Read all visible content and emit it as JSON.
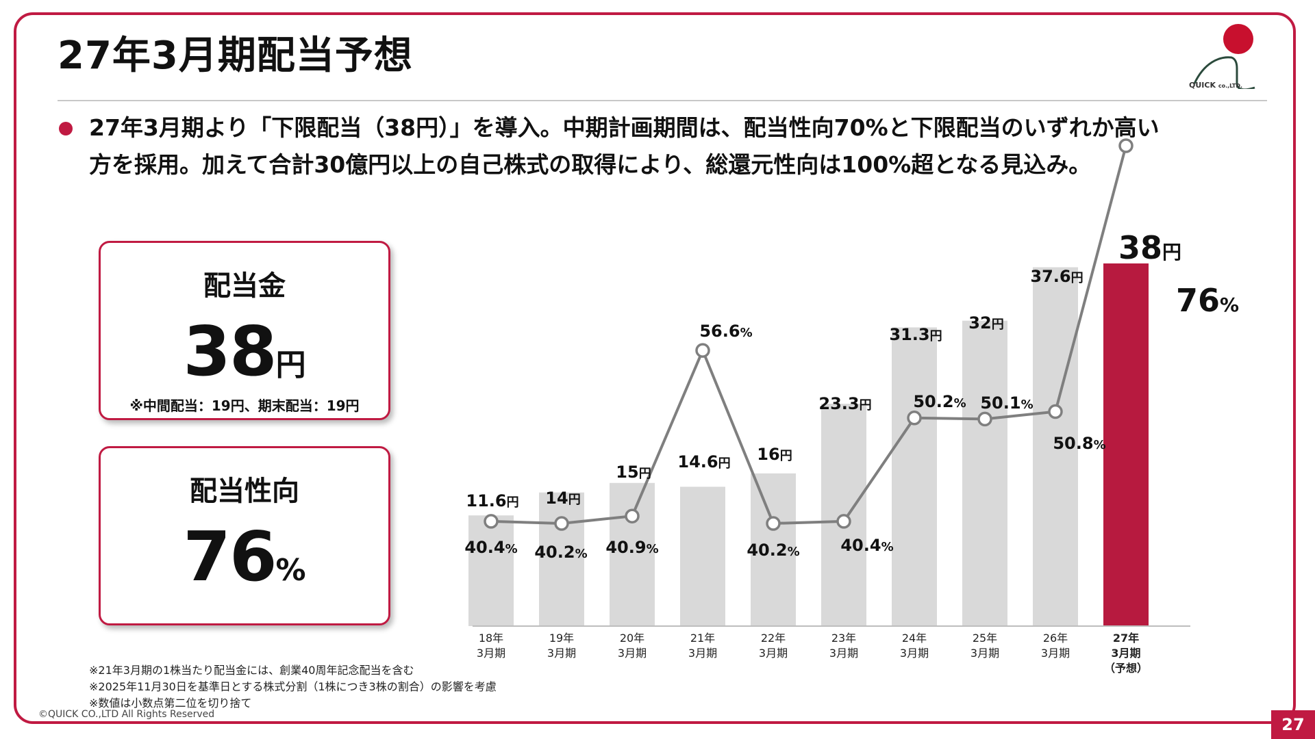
{
  "title": "27年3月期配当予想",
  "logo": {
    "company": "QUICK",
    "suffix": "co.,LTD."
  },
  "bullet": {
    "line1": "27年3月期より「下限配当（38円）」を導入。中期計画期間は、配当性向70%と下限配当のいずれか高い",
    "line2": "方を採用。加えて合計30億円以上の自己株式の取得により、総還元性向は100%超となる見込み。"
  },
  "kpi_dividend": {
    "label": "配当金",
    "value": "38",
    "unit": "円",
    "note": "※中間配当：19円、期末配当：19円"
  },
  "kpi_payout": {
    "label": "配当性向",
    "value": "76",
    "unit": "%"
  },
  "chart_data": {
    "type": "bar+line",
    "categories": [
      [
        "18年",
        "3月期"
      ],
      [
        "19年",
        "3月期"
      ],
      [
        "20年",
        "3月期"
      ],
      [
        "21年",
        "3月期"
      ],
      [
        "22年",
        "3月期"
      ],
      [
        "23年",
        "3月期"
      ],
      [
        "24年",
        "3月期"
      ],
      [
        "25年",
        "3月期"
      ],
      [
        "26年",
        "3月期"
      ],
      [
        "27年",
        "3月期",
        "（予想）"
      ]
    ],
    "series": [
      {
        "kind": "bar",
        "values": [
          11.6,
          14,
          15,
          14.6,
          16,
          23.3,
          31.3,
          32,
          37.6,
          38
        ],
        "labels": [
          "11.6",
          "14",
          "15",
          "14.6",
          "16",
          "23.3",
          "31.3",
          "32",
          "37.6",
          "38"
        ],
        "unit": "円",
        "color": "#d9d9d9",
        "highlight_color": "#b71a3f",
        "highlight_index": 9
      },
      {
        "kind": "line",
        "values": [
          40.4,
          40.2,
          40.9,
          56.6,
          40.2,
          40.4,
          50.2,
          50.1,
          50.8,
          76
        ],
        "labels": [
          "40.4",
          "40.2",
          "40.9",
          "56.6",
          "40.2",
          "40.4",
          "50.2",
          "50.1",
          "50.8",
          "76"
        ],
        "unit": "%",
        "color": "#7f7f7f"
      }
    ]
  },
  "footnotes": [
    "※21年3月期の1株当たり配当金には、創業40周年記念配当を含む",
    "※2025年11月30日を基準日とする株式分割（1株につき3株の割合）の影響を考慮",
    "※数値は小数点第二位を切り捨て"
  ],
  "copyright": "©QUICK CO.,LTD All Rights Reserved",
  "page_number": "27",
  "colors": {
    "accent": "#c01a42",
    "bar": "#d9d9d9",
    "bar_highlight": "#b71a3f",
    "line": "#7f7f7f"
  }
}
